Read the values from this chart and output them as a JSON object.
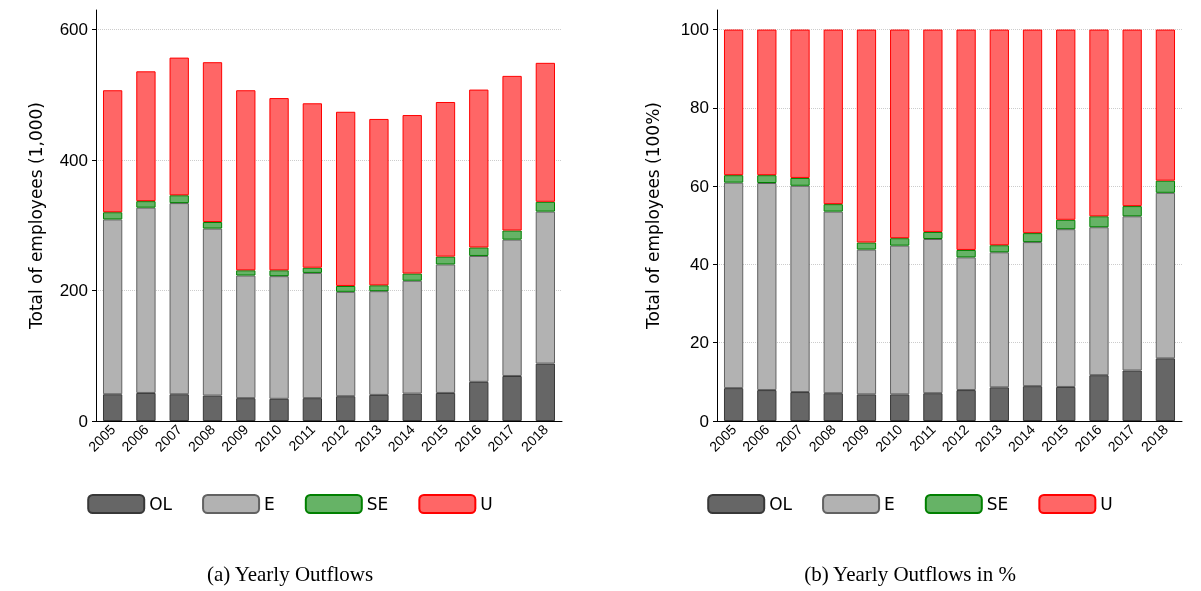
{
  "chart_data": [
    {
      "type": "bar",
      "stacked": true,
      "title": "(a) Yearly Outflows",
      "ylabel": "Total of employees (1,000)",
      "categories": [
        "2005",
        "2006",
        "2007",
        "2008",
        "2009",
        "2010",
        "2011",
        "2012",
        "2013",
        "2014",
        "2015",
        "2016",
        "2017",
        "2018"
      ],
      "series": [
        {
          "name": "OL",
          "color": "#666666",
          "values": [
            41,
            43,
            41,
            39,
            35,
            34,
            35,
            38,
            40,
            42,
            43,
            60,
            69,
            88
          ]
        },
        {
          "name": "E",
          "color": "#b2b2b2",
          "values": [
            268,
            284,
            293,
            256,
            188,
            188,
            192,
            160,
            159,
            173,
            197,
            193,
            209,
            233
          ]
        },
        {
          "name": "SE",
          "color": "#66b366",
          "values": [
            11,
            10,
            12,
            10,
            8,
            9,
            8,
            9,
            9,
            11,
            12,
            13,
            14,
            15
          ]
        },
        {
          "name": "U",
          "color": "#ff6666",
          "values": [
            187,
            199,
            211,
            245,
            276,
            264,
            252,
            267,
            255,
            243,
            237,
            242,
            237,
            213
          ]
        }
      ],
      "ylim": [
        0,
        630
      ],
      "yticks": [
        0,
        200,
        400,
        600
      ],
      "grid": "y",
      "legend": "bottom"
    },
    {
      "type": "bar",
      "stacked": true,
      "title": "(b) Yearly Outflows in %",
      "ylabel": "Total of employees (100%)",
      "categories": [
        "2005",
        "2006",
        "2007",
        "2008",
        "2009",
        "2010",
        "2011",
        "2012",
        "2013",
        "2014",
        "2015",
        "2016",
        "2017",
        "2018"
      ],
      "series": [
        {
          "name": "OL",
          "color": "#666666",
          "values": [
            8.4,
            7.9,
            7.4,
            7.1,
            6.8,
            6.8,
            7.1,
            7.9,
            8.6,
            8.9,
            8.7,
            11.7,
            12.9,
            16.0
          ]
        },
        {
          "name": "E",
          "color": "#b2b2b2",
          "values": [
            52.5,
            52.9,
            52.7,
            46.4,
            37.0,
            38.0,
            39.4,
            33.9,
            34.5,
            36.8,
            40.3,
            37.8,
            39.4,
            42.3
          ]
        },
        {
          "name": "SE",
          "color": "#66b366",
          "values": [
            1.9,
            2.0,
            2.0,
            1.9,
            1.8,
            1.9,
            1.8,
            1.9,
            1.8,
            2.3,
            2.4,
            2.8,
            2.6,
            3.1
          ]
        },
        {
          "name": "U",
          "color": "#ff6666",
          "values": [
            37.2,
            37.2,
            37.9,
            44.6,
            54.4,
            53.3,
            51.7,
            56.3,
            55.1,
            52.0,
            48.6,
            47.7,
            45.1,
            38.6
          ]
        }
      ],
      "ylim": [
        0,
        105
      ],
      "yticks": [
        0,
        20,
        40,
        60,
        80,
        100
      ],
      "grid": "y",
      "legend": "bottom"
    }
  ]
}
